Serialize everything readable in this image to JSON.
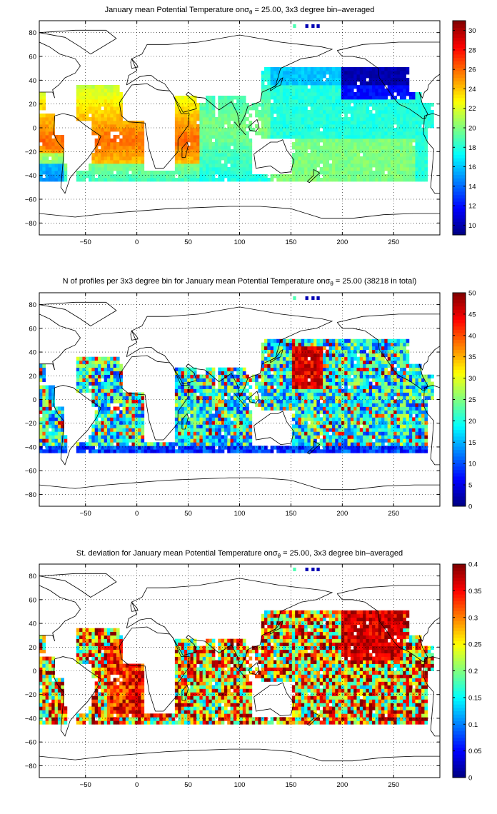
{
  "chart_data": [
    {
      "type": "heatmap",
      "title_prefix": "January mean Potential Temperature on",
      "title_sigma": "σ",
      "title_theta": "θ",
      "title_suffix": " = 25.00, 3x3 degree bin–averaged",
      "xlim": [
        -95,
        295
      ],
      "ylim": [
        -90,
        90
      ],
      "x_ticks": [
        -50,
        0,
        50,
        100,
        150,
        200,
        250
      ],
      "y_ticks": [
        -80,
        -60,
        -40,
        -20,
        0,
        20,
        40,
        60,
        80
      ],
      "grid": true,
      "colormap": "jet",
      "colorbar_range": [
        9,
        31
      ],
      "colorbar_ticks": [
        10,
        12,
        14,
        16,
        18,
        20,
        22,
        24,
        26,
        28,
        30
      ],
      "field": "temperature"
    },
    {
      "type": "heatmap",
      "title_prefix": "N of profiles per 3x3 degree bin for January mean Potential Temperature on",
      "title_sigma": "σ",
      "title_theta": "θ",
      "title_suffix": " = 25.00 (38218 in total)",
      "xlim": [
        -95,
        295
      ],
      "ylim": [
        -90,
        90
      ],
      "x_ticks": [
        -50,
        0,
        50,
        100,
        150,
        200,
        250
      ],
      "y_ticks": [
        -80,
        -60,
        -40,
        -20,
        0,
        20,
        40,
        60,
        80
      ],
      "grid": true,
      "colormap": "jet",
      "colorbar_range": [
        0,
        50
      ],
      "colorbar_ticks": [
        0,
        5,
        10,
        15,
        20,
        25,
        30,
        35,
        40,
        45,
        50
      ],
      "field": "count"
    },
    {
      "type": "heatmap",
      "title_prefix": "St. deviation for January mean Potential Temperature on",
      "title_sigma": "σ",
      "title_theta": "θ",
      "title_suffix": " = 25.00, 3x3 degree bin–averaged",
      "xlim": [
        -95,
        295
      ],
      "ylim": [
        -90,
        90
      ],
      "x_ticks": [
        -50,
        0,
        50,
        100,
        150,
        200,
        250
      ],
      "y_ticks": [
        -80,
        -60,
        -40,
        -20,
        0,
        20,
        40,
        60,
        80
      ],
      "grid": true,
      "colormap": "jet",
      "colorbar_range": [
        0,
        0.4
      ],
      "colorbar_ticks": [
        0,
        0.05,
        0.1,
        0.15,
        0.2,
        0.25,
        0.3,
        0.35,
        0.4
      ],
      "field": "stdev"
    }
  ]
}
